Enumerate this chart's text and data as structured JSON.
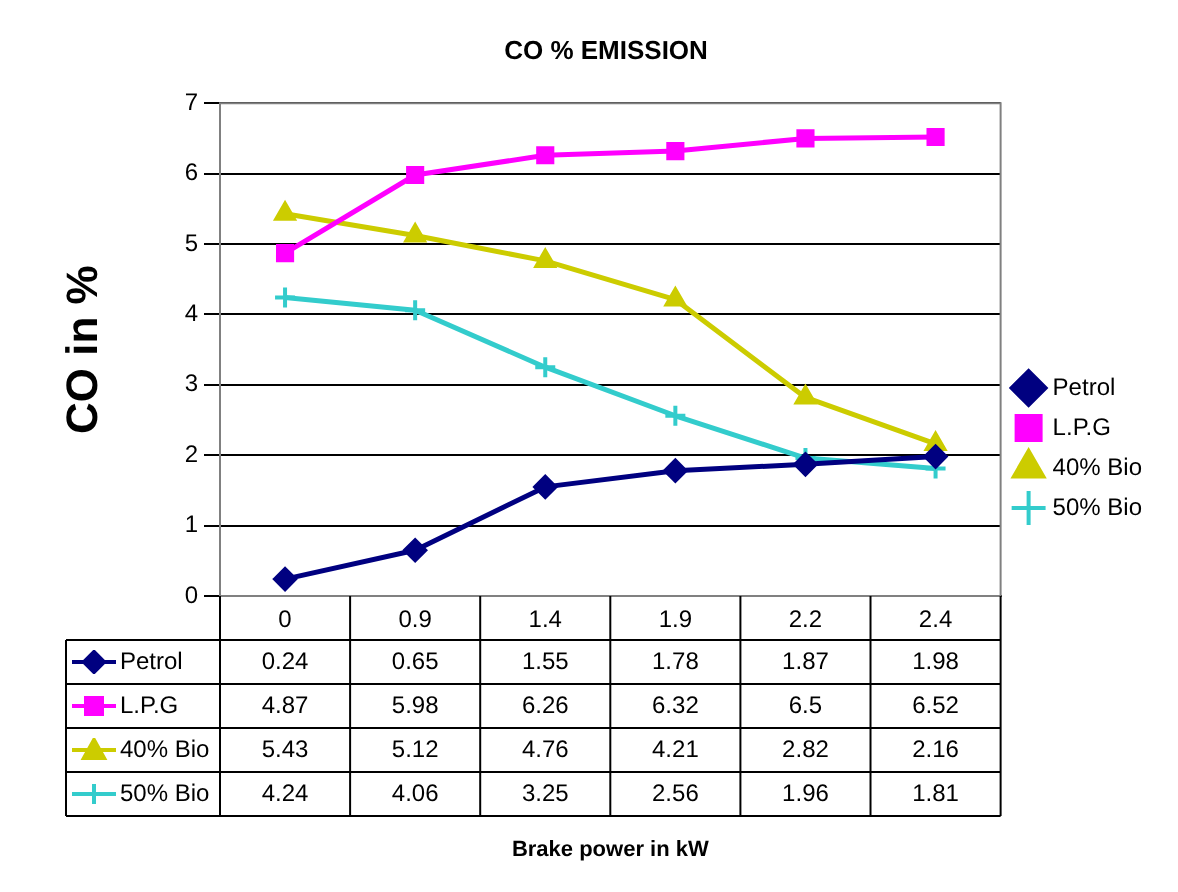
{
  "chart_data": {
    "type": "line",
    "title": "CO % EMISSION",
    "annotations": [
      "Brake power in kW"
    ],
    "ylabel": "CO in %",
    "categories": [
      "0",
      "0.9",
      "1.4",
      "1.9",
      "2.2",
      "2.4"
    ],
    "series": [
      {
        "name": "Petrol",
        "color": "#000080",
        "marker": "diamond",
        "values": [
          0.24,
          0.65,
          1.55,
          1.78,
          1.87,
          1.98
        ]
      },
      {
        "name": "L.P.G",
        "color": "#ff00ff",
        "marker": "square",
        "values": [
          4.87,
          5.98,
          6.26,
          6.32,
          6.5,
          6.52
        ]
      },
      {
        "name": "40% Bio",
        "color": "#cccc00",
        "marker": "triangle",
        "values": [
          5.43,
          5.12,
          4.76,
          4.21,
          2.82,
          2.16
        ]
      },
      {
        "name": "50% Bio",
        "color": "#33cccc",
        "marker": "cross",
        "values": [
          4.24,
          4.06,
          3.25,
          2.56,
          1.96,
          1.81
        ]
      }
    ],
    "ylim": [
      0,
      7
    ],
    "yticks": [
      0,
      1,
      2,
      3,
      4,
      5,
      6,
      7
    ],
    "grid": "y",
    "legend": "right",
    "data_labels": true,
    "line_style": "solid"
  }
}
